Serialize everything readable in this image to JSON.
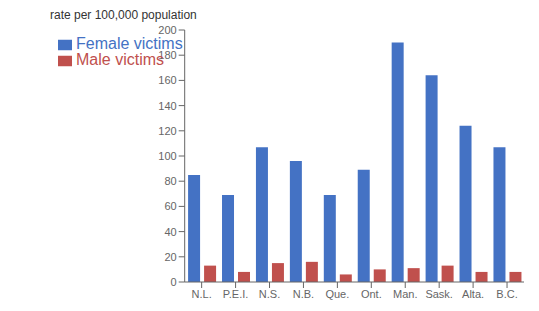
{
  "chart_data": {
    "type": "bar",
    "ylabel": "rate per 100,000 population",
    "categories": [
      "N.L.",
      "P.E.I.",
      "N.S.",
      "N.B.",
      "Que.",
      "Ont.",
      "Man.",
      "Sask.",
      "Alta.",
      "B.C."
    ],
    "series": [
      {
        "name": "Female victims",
        "color": "#4472C4",
        "values": [
          85,
          69,
          107,
          96,
          69,
          89,
          190,
          164,
          124,
          107
        ]
      },
      {
        "name": "Male victims",
        "color": "#C0504D",
        "values": [
          13,
          8,
          15,
          16,
          6,
          10,
          11,
          13,
          8,
          8
        ]
      }
    ],
    "ylim": [
      0,
      200
    ],
    "yticks": [
      0,
      20,
      40,
      60,
      80,
      100,
      120,
      140,
      160,
      180,
      200
    ],
    "grid": false,
    "legend": "upper left"
  }
}
